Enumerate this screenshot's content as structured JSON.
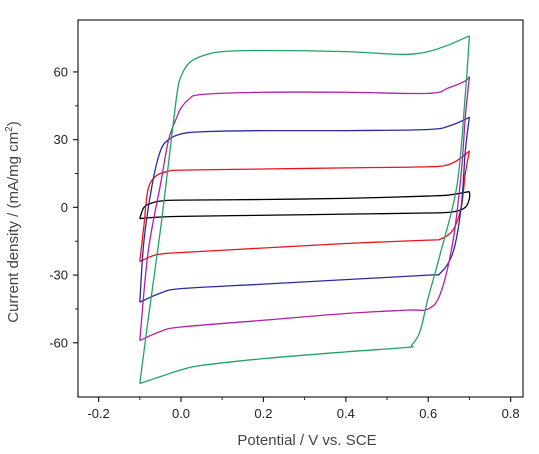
{
  "chart_data": {
    "type": "line",
    "title": "",
    "xlabel": "Potential / V vs. SCE",
    "ylabel_main": "Current density / (mA/mg cm",
    "ylabel_sup": "2",
    "ylabel_end": ")",
    "xlim": [
      -0.25,
      0.83
    ],
    "ylim": [
      -84,
      83
    ],
    "xticks": [
      -0.2,
      0.0,
      0.2,
      0.4,
      0.6,
      0.8
    ],
    "xtick_labels": [
      "-0.2",
      "0.0",
      "0.2",
      "0.4",
      "0.6",
      "0.8"
    ],
    "yticks": [
      60,
      30,
      0,
      -30,
      -60
    ],
    "ytick_labels": [
      "60",
      "30",
      "0",
      "-30",
      "-60"
    ],
    "grid": false,
    "legend": false,
    "series": [
      {
        "color": "#000000",
        "anodic": [
          [
            -0.1,
            -5
          ],
          [
            -0.09,
            0
          ],
          [
            -0.07,
            2
          ],
          [
            -0.04,
            3
          ],
          [
            0.0,
            3.2
          ],
          [
            0.2,
            3.5
          ],
          [
            0.4,
            4
          ],
          [
            0.6,
            5
          ],
          [
            0.65,
            5.5
          ],
          [
            0.7,
            7
          ]
        ],
        "cathodic": [
          [
            0.7,
            7
          ],
          [
            0.7,
            4
          ],
          [
            0.69,
            0
          ],
          [
            0.66,
            -2
          ],
          [
            0.6,
            -2.5
          ],
          [
            0.4,
            -3
          ],
          [
            0.2,
            -3.5
          ],
          [
            0.0,
            -4
          ],
          [
            -0.07,
            -4.5
          ],
          [
            -0.1,
            -5
          ]
        ]
      },
      {
        "color": "#e8141c",
        "anodic": [
          [
            -0.1,
            -24
          ],
          [
            -0.09,
            -8
          ],
          [
            -0.08,
            8
          ],
          [
            -0.06,
            14
          ],
          [
            -0.03,
            16
          ],
          [
            0.0,
            16.5
          ],
          [
            0.2,
            17
          ],
          [
            0.4,
            17.5
          ],
          [
            0.6,
            18
          ],
          [
            0.65,
            19
          ],
          [
            0.68,
            22
          ],
          [
            0.7,
            25
          ]
        ],
        "cathodic": [
          [
            0.7,
            25
          ],
          [
            0.69,
            15
          ],
          [
            0.68,
            0
          ],
          [
            0.66,
            -10
          ],
          [
            0.63,
            -14
          ],
          [
            0.6,
            -14.5
          ],
          [
            0.4,
            -16
          ],
          [
            0.2,
            -18
          ],
          [
            0.0,
            -20
          ],
          [
            -0.06,
            -21
          ],
          [
            -0.1,
            -24
          ]
        ]
      },
      {
        "color": "#2b2ba0",
        "anodic": [
          [
            -0.1,
            -42
          ],
          [
            -0.09,
            -15
          ],
          [
            -0.07,
            10
          ],
          [
            -0.05,
            25
          ],
          [
            -0.03,
            30
          ],
          [
            0.0,
            32.5
          ],
          [
            0.05,
            33.5
          ],
          [
            0.2,
            34
          ],
          [
            0.4,
            34
          ],
          [
            0.6,
            34.5
          ],
          [
            0.65,
            36
          ],
          [
            0.69,
            39
          ],
          [
            0.7,
            40
          ]
        ],
        "cathodic": [
          [
            0.7,
            40
          ],
          [
            0.69,
            25
          ],
          [
            0.68,
            0
          ],
          [
            0.66,
            -20
          ],
          [
            0.63,
            -29
          ],
          [
            0.6,
            -30
          ],
          [
            0.4,
            -32
          ],
          [
            0.2,
            -34
          ],
          [
            0.0,
            -36
          ],
          [
            -0.05,
            -38
          ],
          [
            -0.1,
            -42
          ]
        ]
      },
      {
        "color": "#b21fa5",
        "anodic": [
          [
            -0.1,
            -59
          ],
          [
            -0.08,
            -20
          ],
          [
            -0.05,
            10
          ],
          [
            -0.03,
            30
          ],
          [
            -0.01,
            40
          ],
          [
            0.0,
            44
          ],
          [
            0.02,
            48
          ],
          [
            0.05,
            50
          ],
          [
            0.2,
            51
          ],
          [
            0.4,
            51
          ],
          [
            0.6,
            50.5
          ],
          [
            0.65,
            53
          ],
          [
            0.69,
            56
          ],
          [
            0.7,
            58
          ]
        ],
        "cathodic": [
          [
            0.7,
            58
          ],
          [
            0.69,
            40
          ],
          [
            0.68,
            15
          ],
          [
            0.66,
            -15
          ],
          [
            0.63,
            -38
          ],
          [
            0.6,
            -45
          ],
          [
            0.55,
            -45.5
          ],
          [
            0.4,
            -47
          ],
          [
            0.2,
            -50
          ],
          [
            0.0,
            -53
          ],
          [
            -0.05,
            -55
          ],
          [
            -0.1,
            -59
          ]
        ]
      },
      {
        "color": "#1fa360",
        "anodic": [
          [
            -0.1,
            -78
          ],
          [
            -0.08,
            -50
          ],
          [
            -0.05,
            -10
          ],
          [
            -0.03,
            20
          ],
          [
            -0.01,
            50
          ],
          [
            0.0,
            58
          ],
          [
            0.02,
            64
          ],
          [
            0.05,
            67
          ],
          [
            0.1,
            69
          ],
          [
            0.2,
            69.5
          ],
          [
            0.4,
            69
          ],
          [
            0.5,
            68
          ],
          [
            0.55,
            67.8
          ],
          [
            0.6,
            69
          ],
          [
            0.65,
            72
          ],
          [
            0.7,
            76
          ]
        ],
        "cathodic": [
          [
            0.7,
            76
          ],
          [
            0.69,
            50
          ],
          [
            0.67,
            10
          ],
          [
            0.63,
            -20
          ],
          [
            0.6,
            -40
          ],
          [
            0.58,
            -55
          ],
          [
            0.56,
            -61
          ],
          [
            0.55,
            -62
          ],
          [
            0.4,
            -64
          ],
          [
            0.2,
            -67
          ],
          [
            0.05,
            -70
          ],
          [
            0.0,
            -72
          ],
          [
            -0.05,
            -75
          ],
          [
            -0.1,
            -78
          ]
        ]
      }
    ]
  }
}
